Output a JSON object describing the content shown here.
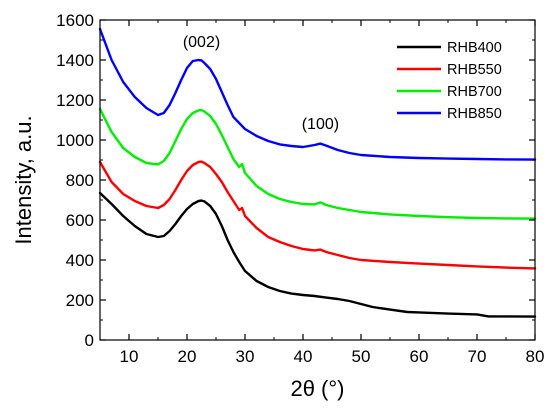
{
  "chart_data": {
    "type": "line",
    "xlabel": "2θ (°)",
    "ylabel": "Intensity, a.u.",
    "xlim": [
      5,
      80
    ],
    "ylim": [
      0,
      1600
    ],
    "xticks": [
      10,
      20,
      30,
      40,
      50,
      60,
      70,
      80
    ],
    "yticks": [
      0,
      200,
      400,
      600,
      800,
      1000,
      1200,
      1400,
      1600
    ],
    "grid": false,
    "legend_position": "top-right",
    "annotations": [
      {
        "text": "(002)",
        "x": 22.5,
        "y": 1465
      },
      {
        "text": "(100)",
        "x": 43,
        "y": 1055
      }
    ],
    "series": [
      {
        "name": "RHB400",
        "color": "#000000",
        "x": [
          5,
          7,
          9,
          11,
          13,
          15,
          16,
          17,
          18,
          19,
          20,
          21,
          22,
          22.5,
          23,
          24,
          25,
          26,
          27,
          28,
          29,
          30,
          32,
          34,
          36,
          38,
          40,
          42,
          44,
          46,
          48,
          50,
          52,
          55,
          58,
          60,
          65,
          70,
          72,
          75,
          80
        ],
        "values": [
          735,
          680,
          620,
          570,
          530,
          515,
          520,
          545,
          580,
          620,
          655,
          680,
          695,
          697,
          693,
          670,
          630,
          570,
          500,
          440,
          390,
          345,
          295,
          265,
          245,
          232,
          225,
          220,
          212,
          205,
          195,
          180,
          165,
          152,
          140,
          138,
          132,
          128,
          118,
          118,
          117
        ]
      },
      {
        "name": "RHB550",
        "color": "#ff0000",
        "x": [
          5,
          7,
          9,
          11,
          13,
          15,
          16,
          17,
          18,
          19,
          20,
          21,
          22,
          22.5,
          23,
          24,
          25,
          26,
          27,
          28,
          29,
          29.5,
          30,
          32,
          34,
          36,
          38,
          40,
          42,
          43,
          44,
          46,
          48,
          50,
          55,
          60,
          65,
          70,
          75,
          80
        ],
        "values": [
          890,
          790,
          730,
          695,
          670,
          660,
          675,
          705,
          750,
          800,
          845,
          875,
          890,
          892,
          885,
          865,
          830,
          790,
          740,
          695,
          650,
          660,
          620,
          560,
          515,
          490,
          470,
          455,
          448,
          452,
          440,
          425,
          410,
          400,
          390,
          382,
          375,
          368,
          362,
          358
        ]
      },
      {
        "name": "RHB700",
        "color": "#00ee00",
        "x": [
          5,
          7,
          9,
          11,
          13,
          15,
          16,
          17,
          18,
          19,
          20,
          21,
          22,
          22.5,
          23,
          24,
          25,
          26,
          27,
          28,
          29,
          29.5,
          30,
          32,
          34,
          36,
          38,
          40,
          42,
          43,
          44,
          46,
          48,
          50,
          55,
          60,
          65,
          70,
          75,
          80
        ],
        "values": [
          1155,
          1040,
          960,
          915,
          885,
          878,
          895,
          935,
          995,
          1055,
          1105,
          1135,
          1148,
          1150,
          1142,
          1120,
          1080,
          1025,
          965,
          905,
          865,
          880,
          835,
          770,
          730,
          705,
          690,
          680,
          678,
          688,
          675,
          660,
          650,
          640,
          628,
          620,
          614,
          610,
          608,
          607
        ]
      },
      {
        "name": "RHB850",
        "color": "#0000ff",
        "x": [
          5,
          7,
          9,
          11,
          13,
          15,
          16,
          17,
          18,
          19,
          20,
          21,
          22,
          22.5,
          23,
          24,
          25,
          26,
          27,
          28,
          30,
          32,
          34,
          36,
          38,
          40,
          42,
          43,
          44,
          46,
          48,
          50,
          55,
          60,
          65,
          70,
          75,
          80
        ],
        "values": [
          1555,
          1400,
          1290,
          1215,
          1160,
          1125,
          1135,
          1175,
          1235,
          1300,
          1360,
          1395,
          1400,
          1398,
          1385,
          1355,
          1305,
          1240,
          1175,
          1115,
          1055,
          1020,
          995,
          978,
          970,
          965,
          975,
          982,
          972,
          950,
          935,
          925,
          915,
          910,
          907,
          905,
          903,
          902
        ]
      }
    ]
  }
}
